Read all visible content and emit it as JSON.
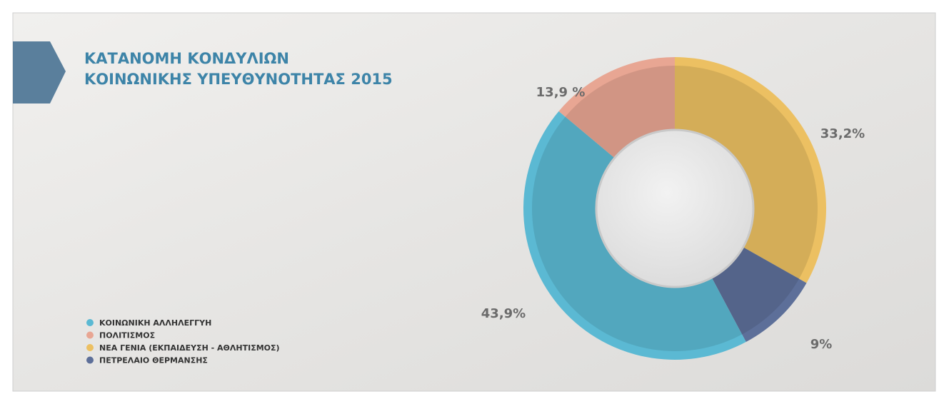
{
  "chart_data": {
    "type": "donut",
    "title": [
      "ΚΑΤΑΝΟΜΗ ΚΟΝΔΥΛΙΩΝ",
      "ΚΟΙΝΩΝΙΚΗΣ ΥΠΕΥΘΥΝΟΤΗΤΑΣ 2015"
    ],
    "categories": [
      "ΚΟΙΝΩΝΙΚΗ ΑΛΛΗΛΕΓΓΥΗ",
      "ΠΟΛΙΤΙΣΜΟΣ",
      "ΝΕΑ ΓΕΝΙΑ (ΕΚΠΑΙΔΕΥΣΗ - ΑΘΛΗΤΙΣΜΟΣ)",
      "ΠΕΤΡΕΛΑΙΟ ΘΕΡΜΑΝΣΗΣ"
    ],
    "values": [
      43.9,
      13.9,
      33.2,
      9
    ],
    "value_labels": [
      "43,9%",
      "13,9 %",
      "33,2%",
      "9%"
    ],
    "colors": [
      "#5bb9d3",
      "#e8a693",
      "#ecc062",
      "#5d6f99"
    ],
    "legend": "bottom-left"
  }
}
